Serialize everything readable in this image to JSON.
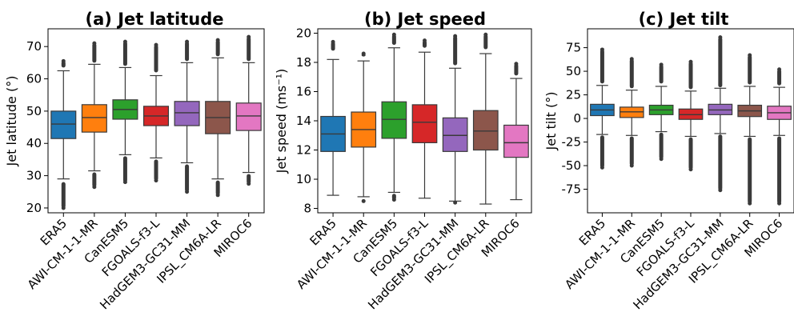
{
  "categories": [
    "ERA5",
    "AWI-CM-1-1-MR",
    "CanESM5",
    "FGOALS-f3-L",
    "HadGEM3-GC31-MM",
    "IPSL_CM6A-LR",
    "MIROC6"
  ],
  "colors": [
    "#1f77b4",
    "#ff7f0e",
    "#2ca02c",
    "#d62728",
    "#9467bd",
    "#8c564b",
    "#e377c2"
  ],
  "chart_data": [
    {
      "type": "boxplot",
      "title": "(a) Jet latitude",
      "ylabel": "Jet latitude (°)",
      "ylim": [
        18.5,
        75.5
      ],
      "yticks": [
        20,
        30,
        40,
        50,
        60,
        70
      ],
      "grid": false,
      "series": [
        {
          "category": "ERA5",
          "min": 29,
          "q1": 41.5,
          "median": 46,
          "q3": 50,
          "max": 62.5,
          "outliers_low": [
            20,
            28
          ],
          "outliers_high": [
            63.5,
            65.5
          ]
        },
        {
          "category": "AWI-CM-1-1-MR",
          "min": 31.5,
          "q1": 43.5,
          "median": 48,
          "q3": 52,
          "max": 64.5,
          "outliers_low": [
            26.5,
            31
          ],
          "outliers_high": [
            65,
            71
          ]
        },
        {
          "category": "CanESM5",
          "min": 36.5,
          "q1": 47.5,
          "median": 50.5,
          "q3": 53.5,
          "max": 63.5,
          "outliers_low": [
            28,
            36
          ],
          "outliers_high": [
            64,
            71.5
          ]
        },
        {
          "category": "FGOALS-f3-L",
          "min": 35.5,
          "q1": 45.5,
          "median": 48.5,
          "q3": 51.5,
          "max": 61,
          "outliers_low": [
            28.5,
            35
          ],
          "outliers_high": [
            62,
            70.5
          ]
        },
        {
          "category": "HadGEM3-GC31-MM",
          "min": 34,
          "q1": 45.5,
          "median": 49.5,
          "q3": 53,
          "max": 65,
          "outliers_low": [
            25,
            33.5
          ],
          "outliers_high": [
            65.5,
            71.5
          ]
        },
        {
          "category": "IPSL_CM6A-LR",
          "min": 29,
          "q1": 43,
          "median": 48,
          "q3": 53,
          "max": 66.5,
          "outliers_low": [
            24,
            28.5
          ],
          "outliers_high": [
            67,
            72
          ]
        },
        {
          "category": "MIROC6",
          "min": 31,
          "q1": 44,
          "median": 48.5,
          "q3": 52.5,
          "max": 65,
          "outliers_low": [
            27.5,
            30.5
          ],
          "outliers_high": [
            65.5,
            73
          ]
        }
      ]
    },
    {
      "type": "boxplot",
      "title": "(b) Jet speed",
      "ylabel": "Jet speed (ms⁻¹)",
      "ylim": [
        7.7,
        20.3
      ],
      "yticks": [
        8,
        10,
        12,
        14,
        16,
        18,
        20
      ],
      "grid": false,
      "series": [
        {
          "category": "ERA5",
          "min": 8.9,
          "q1": 11.9,
          "median": 13.1,
          "q3": 14.3,
          "max": 18.2,
          "outliers_low": [],
          "outliers_high": [
            18.8,
            19.4
          ]
        },
        {
          "category": "AWI-CM-1-1-MR",
          "min": 8.8,
          "q1": 12.2,
          "median": 13.4,
          "q3": 14.6,
          "max": 18.1,
          "outliers_low": [
            8.5
          ],
          "outliers_high": [
            18.4,
            18.6
          ]
        },
        {
          "category": "CanESM5",
          "min": 9.1,
          "q1": 12.8,
          "median": 14.1,
          "q3": 15.3,
          "max": 19.0,
          "outliers_low": [
            8.6,
            9.0
          ],
          "outliers_high": [
            19.2,
            19.9
          ]
        },
        {
          "category": "FGOALS-f3-L",
          "min": 8.7,
          "q1": 12.5,
          "median": 13.9,
          "q3": 15.1,
          "max": 18.7,
          "outliers_low": [],
          "outliers_high": [
            19.0,
            19.5
          ]
        },
        {
          "category": "HadGEM3-GC31-MM",
          "min": 8.5,
          "q1": 11.9,
          "median": 13.0,
          "q3": 14.2,
          "max": 17.6,
          "outliers_low": [
            8.4
          ],
          "outliers_high": [
            17.8,
            19.8
          ]
        },
        {
          "category": "IPSL_CM6A-LR",
          "min": 8.3,
          "q1": 12.0,
          "median": 13.3,
          "q3": 14.7,
          "max": 18.6,
          "outliers_low": [],
          "outliers_high": [
            18.9,
            19.9
          ]
        },
        {
          "category": "MIROC6",
          "min": 8.6,
          "q1": 11.5,
          "median": 12.5,
          "q3": 13.7,
          "max": 16.9,
          "outliers_low": [],
          "outliers_high": [
            17.1,
            17.9
          ]
        }
      ]
    },
    {
      "type": "boxplot",
      "title": "(c) Jet tilt",
      "ylabel": "Jet tilt (°)",
      "ylim": [
        -100,
        95
      ],
      "yticks": [
        -75,
        -50,
        -25,
        0,
        25,
        50,
        75
      ],
      "grid": false,
      "series": [
        {
          "category": "ERA5",
          "min": -17,
          "q1": 3,
          "median": 9,
          "q3": 15,
          "max": 35,
          "outliers_low": [
            -52,
            -18
          ],
          "outliers_high": [
            37,
            73
          ]
        },
        {
          "category": "AWI-CM-1-1-MR",
          "min": -18,
          "q1": 1,
          "median": 7,
          "q3": 12,
          "max": 30,
          "outliers_low": [
            -50,
            -19
          ],
          "outliers_high": [
            32,
            63
          ]
        },
        {
          "category": "CanESM5",
          "min": -14,
          "q1": 4,
          "median": 9,
          "q3": 14,
          "max": 34,
          "outliers_low": [
            -43,
            -15
          ],
          "outliers_high": [
            37,
            57
          ]
        },
        {
          "category": "FGOALS-f3-L",
          "min": -19,
          "q1": -1,
          "median": 4,
          "q3": 10,
          "max": 29,
          "outliers_low": [
            -54,
            -20
          ],
          "outliers_high": [
            31,
            60
          ]
        },
        {
          "category": "HadGEM3-GC31-MM",
          "min": -16,
          "q1": 4,
          "median": 9,
          "q3": 15,
          "max": 32,
          "outliers_low": [
            -76,
            -17
          ],
          "outliers_high": [
            33,
            86
          ]
        },
        {
          "category": "IPSL_CM6A-LR",
          "min": -19,
          "q1": 2,
          "median": 8,
          "q3": 14,
          "max": 34,
          "outliers_low": [
            -90,
            -20
          ],
          "outliers_high": [
            36,
            67
          ]
        },
        {
          "category": "MIROC6",
          "min": -18,
          "q1": -1,
          "median": 6,
          "q3": 13,
          "max": 33,
          "outliers_low": [
            -90,
            -19
          ],
          "outliers_high": [
            35,
            52
          ]
        }
      ]
    }
  ]
}
